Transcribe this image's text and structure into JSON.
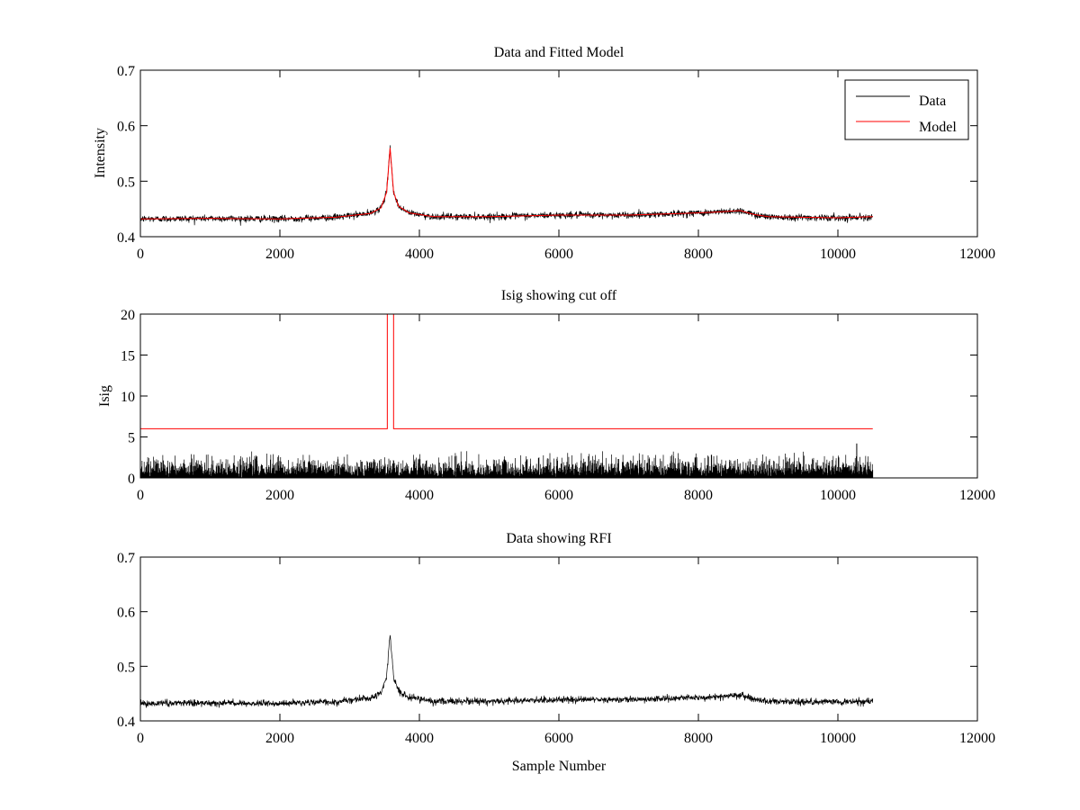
{
  "chart_data": [
    {
      "type": "line",
      "title": "Data and Fitted Model",
      "xlabel": "",
      "ylabel": "Intensity",
      "xlim": [
        0,
        12000
      ],
      "ylim": [
        0.4,
        0.7
      ],
      "xticks": [
        0,
        2000,
        4000,
        6000,
        8000,
        10000,
        12000
      ],
      "xtick_labels": [
        "0",
        "2000",
        "4000",
        "6000",
        "8000",
        "10000",
        "12000"
      ],
      "yticks": [
        0.4,
        0.5,
        0.6,
        0.7
      ],
      "ytick_labels": [
        "0.4",
        "0.5",
        "0.6",
        "0.7"
      ],
      "legend": {
        "position": "top-right",
        "entries": [
          "Data",
          "Model"
        ]
      },
      "series": [
        {
          "name": "Data",
          "color": "#000000",
          "style": "noisy",
          "noise_amplitude": 0.006,
          "x": [
            0,
            1000,
            2000,
            2800,
            3300,
            3450,
            3530,
            3580,
            3630,
            3700,
            3850,
            4200,
            5000,
            6000,
            7000,
            7800,
            8200,
            8600,
            8800,
            9000,
            10000,
            10500
          ],
          "y": [
            0.432,
            0.433,
            0.432,
            0.435,
            0.442,
            0.452,
            0.48,
            0.56,
            0.48,
            0.455,
            0.443,
            0.436,
            0.436,
            0.439,
            0.439,
            0.442,
            0.444,
            0.447,
            0.44,
            0.436,
            0.434,
            0.436
          ]
        },
        {
          "name": "Model",
          "color": "#ff0000",
          "style": "line",
          "x": [
            0,
            1000,
            2000,
            2800,
            3300,
            3450,
            3530,
            3580,
            3630,
            3700,
            3850,
            4200,
            5000,
            6000,
            7000,
            7800,
            8200,
            8600,
            8800,
            9000,
            10000,
            10500
          ],
          "y": [
            0.432,
            0.433,
            0.432,
            0.435,
            0.442,
            0.452,
            0.48,
            0.56,
            0.48,
            0.455,
            0.443,
            0.436,
            0.436,
            0.439,
            0.439,
            0.442,
            0.444,
            0.447,
            0.44,
            0.436,
            0.434,
            0.436
          ]
        }
      ]
    },
    {
      "type": "line",
      "title": "Isig showing cut off",
      "xlabel": "",
      "ylabel": "Isig",
      "xlim": [
        0,
        12000
      ],
      "ylim": [
        0,
        20
      ],
      "xticks": [
        0,
        2000,
        4000,
        6000,
        8000,
        10000,
        12000
      ],
      "xtick_labels": [
        "0",
        "2000",
        "4000",
        "6000",
        "8000",
        "10000",
        "12000"
      ],
      "yticks": [
        0,
        5,
        10,
        15,
        20
      ],
      "ytick_labels": [
        "0",
        "5",
        "10",
        "15",
        "20"
      ],
      "series": [
        {
          "name": "Isig",
          "color": "#000000",
          "style": "noise-spikes",
          "x": [
            0,
            10500
          ],
          "typical_max": 2.8,
          "outlier": {
            "x": 10270,
            "y": 4.2
          }
        },
        {
          "name": "Cut off",
          "color": "#ff0000",
          "style": "line",
          "x": [
            0,
            3540,
            3540,
            3630,
            3630,
            10500
          ],
          "y": [
            6,
            6,
            20,
            20,
            6,
            6
          ]
        }
      ]
    },
    {
      "type": "line",
      "title": "Data showing RFI",
      "xlabel": "Sample Number",
      "ylabel": "",
      "xlim": [
        0,
        12000
      ],
      "ylim": [
        0.4,
        0.7
      ],
      "xticks": [
        0,
        2000,
        4000,
        6000,
        8000,
        10000,
        12000
      ],
      "xtick_labels": [
        "0",
        "2000",
        "4000",
        "6000",
        "8000",
        "10000",
        "12000"
      ],
      "yticks": [
        0.4,
        0.5,
        0.6,
        0.7
      ],
      "ytick_labels": [
        "0.4",
        "0.5",
        "0.6",
        "0.7"
      ],
      "series": [
        {
          "name": "Data",
          "color": "#000000",
          "style": "noisy",
          "noise_amplitude": 0.006,
          "x": [
            0,
            1000,
            2000,
            2800,
            3300,
            3450,
            3530,
            3580,
            3630,
            3700,
            3850,
            4200,
            5000,
            6000,
            7000,
            7800,
            8200,
            8600,
            8800,
            9000,
            10000,
            10500
          ],
          "y": [
            0.432,
            0.433,
            0.432,
            0.435,
            0.442,
            0.452,
            0.48,
            0.56,
            0.48,
            0.455,
            0.443,
            0.436,
            0.436,
            0.439,
            0.439,
            0.442,
            0.444,
            0.447,
            0.44,
            0.436,
            0.434,
            0.436
          ]
        }
      ]
    }
  ]
}
